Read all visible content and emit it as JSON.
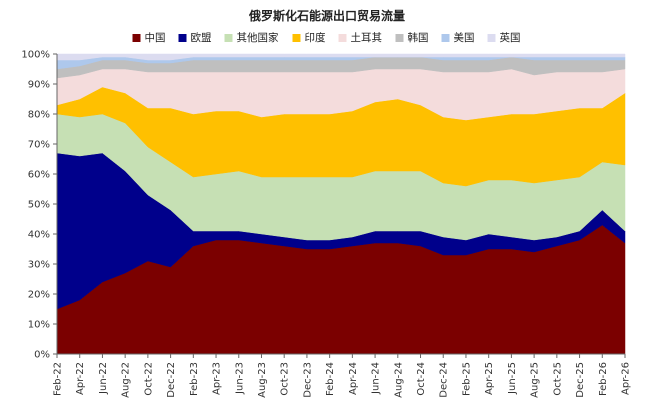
{
  "chart_data": {
    "type": "area",
    "title": "俄罗斯化石能源出口贸易流量",
    "stacked": true,
    "normalized": true,
    "ylim": [
      0,
      100
    ],
    "y_ticks": [
      "0%",
      "10%",
      "20%",
      "30%",
      "40%",
      "50%",
      "60%",
      "70%",
      "80%",
      "90%",
      "100%"
    ],
    "x_ticks": [
      "Feb-22",
      "Apr-22",
      "Jun-22",
      "Aug-22",
      "Oct-22",
      "Dec-22",
      "Feb-23",
      "Apr-23",
      "Jun-23",
      "Aug-23",
      "Oct-23",
      "Dec-23",
      "Feb-24",
      "Apr-24",
      "Jun-24",
      "Aug-24",
      "Oct-24",
      "Dec-24",
      "Feb-25",
      "Apr-25",
      "Jun-25",
      "Aug-25",
      "Oct-25",
      "Dec-25",
      "Feb-26",
      "Apr-26"
    ],
    "legend_position": "top",
    "grid": false,
    "series": [
      {
        "name": "中国",
        "color": "#7b0000",
        "values": [
          15,
          18,
          24,
          27,
          31,
          29,
          36,
          38,
          38,
          37,
          36,
          35,
          35,
          36,
          37,
          37,
          36,
          33,
          33,
          35,
          35,
          34,
          36,
          38,
          43,
          37
        ]
      },
      {
        "name": "欧盟",
        "color": "#00008b",
        "values": [
          52,
          48,
          43,
          34,
          22,
          19,
          5,
          3,
          3,
          3,
          3,
          3,
          3,
          3,
          4,
          4,
          5,
          6,
          5,
          5,
          4,
          4,
          3,
          3,
          5,
          4
        ]
      },
      {
        "name": "其他国家",
        "color": "#c6e0b4",
        "values": [
          13,
          13,
          13,
          16,
          16,
          16,
          18,
          19,
          20,
          19,
          20,
          21,
          21,
          20,
          20,
          20,
          20,
          18,
          18,
          18,
          19,
          19,
          19,
          18,
          16,
          22
        ]
      },
      {
        "name": "印度",
        "color": "#ffc000",
        "values": [
          3,
          6,
          9,
          10,
          13,
          18,
          21,
          21,
          20,
          20,
          21,
          21,
          21,
          22,
          23,
          24,
          22,
          22,
          22,
          21,
          22,
          23,
          23,
          23,
          18,
          24
        ]
      },
      {
        "name": "土耳其",
        "color": "#f4dcdc",
        "values": [
          9,
          8,
          6,
          8,
          12,
          12,
          14,
          13,
          13,
          15,
          14,
          14,
          14,
          13,
          11,
          10,
          12,
          15,
          16,
          15,
          15,
          13,
          13,
          12,
          12,
          8
        ]
      },
      {
        "name": "韩国",
        "color": "#bfbfbf",
        "values": [
          3,
          3,
          3,
          3,
          3,
          3,
          4,
          4,
          4,
          4,
          4,
          4,
          4,
          4,
          4,
          4,
          4,
          4,
          4,
          4,
          4,
          5,
          4,
          4,
          4,
          3
        ]
      },
      {
        "name": "美国",
        "color": "#aec8ec",
        "values": [
          3,
          2,
          1,
          1,
          1,
          1,
          1,
          1,
          1,
          1,
          1,
          1,
          1,
          1,
          0,
          0,
          0,
          1,
          1,
          1,
          0,
          1,
          1,
          1,
          1,
          1
        ]
      },
      {
        "name": "英国",
        "color": "#dcdcf0",
        "values": [
          2,
          2,
          1,
          1,
          2,
          2,
          1,
          1,
          1,
          1,
          1,
          1,
          1,
          1,
          1,
          1,
          1,
          1,
          1,
          1,
          1,
          1,
          1,
          1,
          1,
          1
        ]
      }
    ]
  }
}
